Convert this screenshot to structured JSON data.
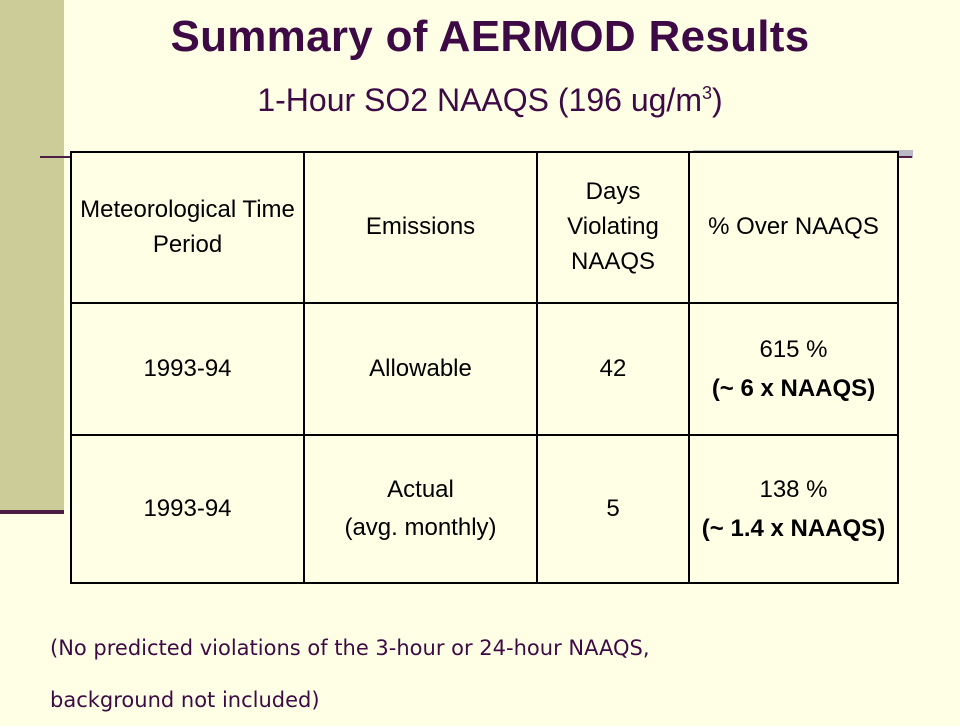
{
  "slide": {
    "title": "Summary of AERMOD Results",
    "subtitle_main": "1-Hour SO2 NAAQS (196 ug/m",
    "subtitle_sup": "3",
    "subtitle_end": ")"
  },
  "table": {
    "headers": [
      "Meteorological Time Period",
      "Emissions",
      "Days Violating NAAQS",
      "% Over NAAQS"
    ],
    "rows": [
      {
        "period": "1993-94",
        "emissions": "Allowable",
        "emissions_sub": "",
        "days": "42",
        "pct": "615 %",
        "pct_sub": "(~ 6 x NAAQS)"
      },
      {
        "period": "1993-94",
        "emissions": "Actual",
        "emissions_sub": "(avg. monthly)",
        "days": "5",
        "pct": "138 %",
        "pct_sub": "(~ 1.4 x NAAQS)"
      }
    ]
  },
  "footnote": {
    "line1": "(No predicted violations of the 3-hour or 24-hour NAAQS,",
    "line2": "background not included)"
  },
  "colors": {
    "title": "#3E0A45",
    "background": "#FFFFE5",
    "side_band": "#CCCC99"
  }
}
